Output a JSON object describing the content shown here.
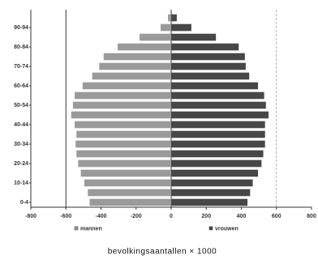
{
  "chart_data": {
    "type": "population-pyramid",
    "x_label": "bevolkingsaantallen × 1000",
    "categories": [
      "0-4",
      null,
      "10-14",
      null,
      "20-24",
      null,
      "30-34",
      null,
      "40-44",
      null,
      "50-54",
      null,
      "60-64",
      null,
      "70-74",
      null,
      "80-84",
      null,
      "90-94",
      null
    ],
    "series": [
      {
        "name": "mannen",
        "color": "#9a9a9a",
        "values": [
          -465,
          -475,
          -495,
          -515,
          -530,
          -540,
          -545,
          -540,
          -550,
          -570,
          -560,
          -550,
          -505,
          -450,
          -410,
          -385,
          -305,
          -180,
          -60,
          -18
        ]
      },
      {
        "name": "vrouwen",
        "color": "#474747",
        "values": [
          435,
          450,
          465,
          495,
          515,
          525,
          535,
          535,
          535,
          555,
          540,
          530,
          495,
          445,
          425,
          420,
          385,
          255,
          115,
          32
        ]
      }
    ],
    "xlim": [
      -800,
      800
    ],
    "xticks": [
      -800,
      -600,
      -400,
      -200,
      0,
      200,
      400,
      600,
      800
    ],
    "xgrid": [
      -600,
      0,
      600
    ]
  }
}
